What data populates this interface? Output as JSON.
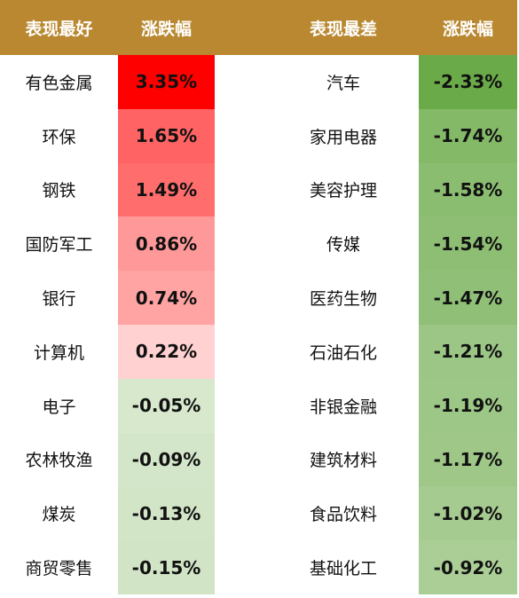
{
  "chart_data": {
    "type": "table",
    "headers": {
      "best_label": "表现最好",
      "best_change": "涨跌幅",
      "worst_label": "表现最差",
      "worst_change": "涨跌幅"
    },
    "best": [
      {
        "sector": "有色金属",
        "change": "3.35%",
        "value": 3.35
      },
      {
        "sector": "环保",
        "change": "1.65%",
        "value": 1.65
      },
      {
        "sector": "钢铁",
        "change": "1.49%",
        "value": 1.49
      },
      {
        "sector": "国防军工",
        "change": "0.86%",
        "value": 0.86
      },
      {
        "sector": "银行",
        "change": "0.74%",
        "value": 0.74
      },
      {
        "sector": "计算机",
        "change": "0.22%",
        "value": 0.22
      },
      {
        "sector": "电子",
        "change": "-0.05%",
        "value": -0.05
      },
      {
        "sector": "农林牧渔",
        "change": "-0.09%",
        "value": -0.09
      },
      {
        "sector": "煤炭",
        "change": "-0.13%",
        "value": -0.13
      },
      {
        "sector": "商贸零售",
        "change": "-0.15%",
        "value": -0.15
      }
    ],
    "worst": [
      {
        "sector": "汽车",
        "change": "-2.33%",
        "value": -2.33
      },
      {
        "sector": "家用电器",
        "change": "-1.74%",
        "value": -1.74
      },
      {
        "sector": "美容护理",
        "change": "-1.58%",
        "value": -1.58
      },
      {
        "sector": "传媒",
        "change": "-1.54%",
        "value": -1.54
      },
      {
        "sector": "医药生物",
        "change": "-1.47%",
        "value": -1.47
      },
      {
        "sector": "石油石化",
        "change": "-1.21%",
        "value": -1.21
      },
      {
        "sector": "非银金融",
        "change": "-1.19%",
        "value": -1.19
      },
      {
        "sector": "建筑材料",
        "change": "-1.17%",
        "value": -1.17
      },
      {
        "sector": "食品饮料",
        "change": "-1.02%",
        "value": -1.02
      },
      {
        "sector": "基础化工",
        "change": "-0.92%",
        "value": -0.92
      }
    ]
  },
  "colors": {
    "header_bg": "#b98830",
    "header_text": "#ffffff",
    "up_strong": "#ff0000",
    "up_light": "#fff0f0",
    "down_strong": "#6aaa48",
    "down_light": "#eef5ea"
  }
}
